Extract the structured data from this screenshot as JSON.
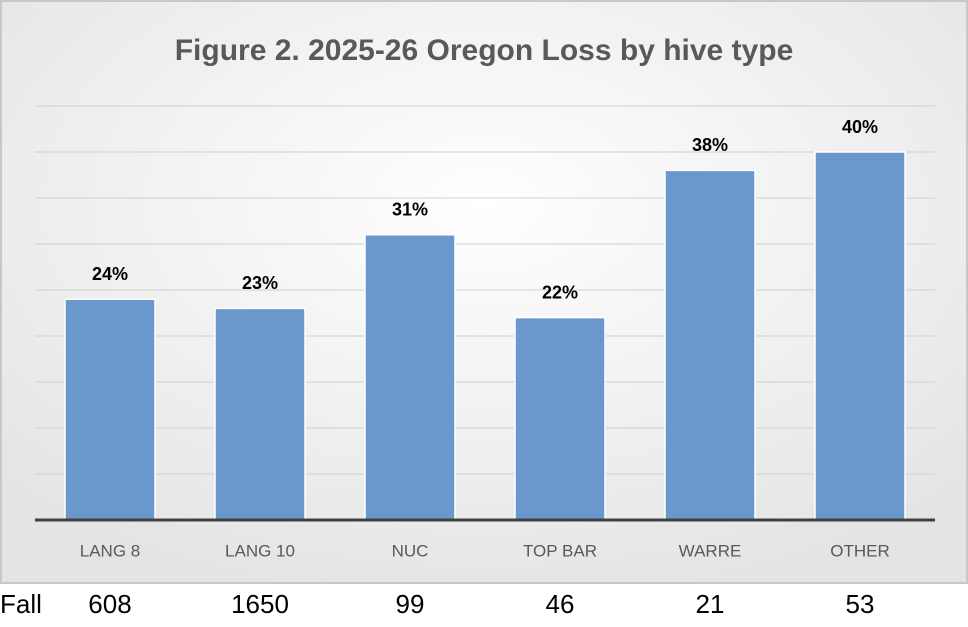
{
  "chart_data": {
    "type": "bar",
    "title": "Figure 2. 2025-26 Oregon Loss by hive type",
    "categories": [
      "LANG 8",
      "LANG 10",
      "NUC",
      "TOP BAR",
      "WARRE",
      "OTHER"
    ],
    "values": [
      24,
      23,
      31,
      22,
      38,
      40
    ],
    "value_labels": [
      "24%",
      "23%",
      "31%",
      "22%",
      "38%",
      "40%"
    ],
    "color": "#6a98cd",
    "ylim": [
      0,
      45
    ],
    "yticks": [
      0,
      5,
      10,
      15,
      20,
      25,
      30,
      35,
      40,
      45
    ],
    "grid": true,
    "fall_row": {
      "label": "Fall",
      "values": [
        608,
        1650,
        99,
        46,
        21,
        53
      ]
    }
  }
}
